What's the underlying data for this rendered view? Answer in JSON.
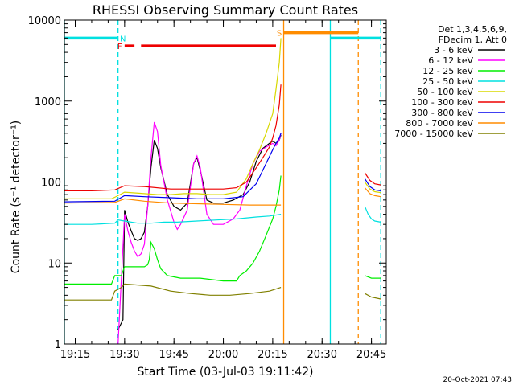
{
  "chart_data": {
    "type": "line",
    "title": "RHESSI Observing Summary Count Rates",
    "xlabel": "Start Time (03-Jul-03 19:11:42)",
    "ylabel": "Count Rate (s⁻¹ detector⁻¹)",
    "yscale": "log",
    "ylim": [
      1,
      10000
    ],
    "xlim": [
      "19:11:42",
      "20:49:30"
    ],
    "x_ticks": [
      "19:15",
      "19:30",
      "19:45",
      "20:00",
      "20:15",
      "20:30",
      "20:45"
    ],
    "y_ticks": [
      "1",
      "10",
      "100",
      "1000",
      "10000"
    ],
    "grid": false,
    "legend": {
      "placement": "right",
      "header": [
        "Det 1,3,4,5,6,9,",
        "FDecim 1, Att 0"
      ],
      "entries": [
        {
          "label": "3 - 6 keV",
          "color": "#000000"
        },
        {
          "label": "6 - 12 keV",
          "color": "#ff00ff"
        },
        {
          "label": "12 - 25 keV",
          "color": "#00ee00"
        },
        {
          "label": "25 - 50 keV",
          "color": "#00e0e0"
        },
        {
          "label": "50 - 100 keV",
          "color": "#d8d800"
        },
        {
          "label": "100 - 300 keV",
          "color": "#ee0000"
        },
        {
          "label": "300 - 800 keV",
          "color": "#0000ee"
        },
        {
          "label": "800 - 7000 keV",
          "color": "#ff8c00"
        },
        {
          "label": "7000 - 15000 keV",
          "color": "#808000"
        }
      ]
    },
    "segments": [
      {
        "x_start": "19:11:42",
        "x_end": "20:17:30"
      },
      {
        "x_start": "20:43:00",
        "x_end": "20:47:50"
      }
    ],
    "series": [
      {
        "name": "3 - 6 keV",
        "color": "#000000",
        "x": [
          "19:28:00",
          "19:29:30",
          "19:30:00",
          "19:31:00",
          "19:32:00",
          "19:33:00",
          "19:34:00",
          "19:35:00",
          "19:36:00",
          "19:37:00",
          "19:38:00",
          "19:39:00",
          "19:40:00",
          "19:41:00",
          "19:43:00",
          "19:45:00",
          "19:47:00",
          "19:49:00",
          "19:51:00",
          "19:52:00",
          "19:53:00",
          "19:55:00",
          "19:57:00",
          "20:00:00",
          "20:03:00",
          "20:06:00",
          "20:08:00",
          "20:10:00",
          "20:12:00",
          "20:14:00",
          "20:15:00",
          "20:16:00",
          "20:17:00",
          "20:17:30"
        ],
        "y": [
          1.5,
          2,
          45,
          32,
          25,
          20,
          19,
          20,
          24,
          50,
          150,
          330,
          260,
          150,
          70,
          50,
          45,
          55,
          170,
          200,
          140,
          60,
          55,
          55,
          60,
          70,
          100,
          180,
          260,
          300,
          320,
          300,
          330,
          380
        ]
      },
      {
        "name": "6 - 12 keV",
        "color": "#ff00ff",
        "x": [
          "19:28:00",
          "19:30:00",
          "19:31:00",
          "19:32:00",
          "19:33:00",
          "19:34:00",
          "19:35:00",
          "19:36:00",
          "19:37:00",
          "19:38:00",
          "19:39:00",
          "19:40:00",
          "19:41:00",
          "19:43:00",
          "19:45:00",
          "19:46:00",
          "19:47:00",
          "19:49:00",
          "19:51:00",
          "19:52:00",
          "19:53:00",
          "19:55:00",
          "19:57:00",
          "20:00:00",
          "20:03:00",
          "20:05:00",
          "20:07:00",
          "20:09:00",
          "20:11:00",
          "20:13:00",
          "20:15:00",
          "20:16:00",
          "20:17:00",
          "20:17:30"
        ],
        "y": [
          1,
          40,
          25,
          18,
          14,
          12,
          13,
          17,
          50,
          200,
          550,
          420,
          160,
          60,
          32,
          26,
          30,
          45,
          170,
          210,
          150,
          40,
          30,
          30,
          35,
          45,
          90,
          170,
          240,
          270,
          300,
          280,
          330,
          400
        ]
      },
      {
        "name": "12 - 25 keV",
        "color": "#00ee00",
        "x": [
          "19:11:42",
          "19:26:00",
          "19:27:00",
          "19:29:00",
          "19:30:00",
          "19:36:00",
          "19:37:00",
          "19:37:30",
          "19:38:00",
          "19:39:00",
          "19:40:00",
          "19:41:00",
          "19:43:00",
          "19:47:00",
          "19:49:00",
          "19:53:00",
          "20:00:00",
          "20:04:00",
          "20:05:00",
          "20:07:00",
          "20:09:00",
          "20:11:00",
          "20:13:00",
          "20:15:00",
          "20:16:00",
          "20:17:00",
          "20:17:30"
        ],
        "y": [
          5.5,
          5.5,
          7,
          7,
          9,
          9,
          9.5,
          11,
          18,
          15,
          11,
          8.5,
          7,
          6.5,
          6.5,
          6.5,
          6,
          6,
          7,
          8,
          10,
          14,
          22,
          35,
          50,
          80,
          120
        ]
      },
      {
        "name": "25 - 50 keV",
        "color": "#00e0e0",
        "x": [
          "19:11:42",
          "19:20:00",
          "19:27:00",
          "19:28:00",
          "19:30:00",
          "19:34:00",
          "19:38:00",
          "19:42:00",
          "19:46:00",
          "19:52:00",
          "19:58:00",
          "20:04:00",
          "20:10:00",
          "20:14:00",
          "20:17:30"
        ],
        "y": [
          30,
          30,
          31,
          34,
          33,
          31,
          31,
          32,
          32,
          33,
          34,
          35,
          37,
          38,
          40
        ]
      },
      {
        "name": "50 - 100 keV",
        "color": "#d8d800",
        "x": [
          "19:11:42",
          "19:26:00",
          "19:28:00",
          "19:30:00",
          "19:36:00",
          "19:40:00",
          "19:44:00",
          "19:48:00",
          "19:52:00",
          "19:56:00",
          "20:00:00",
          "20:04:00",
          "20:07:00",
          "20:09:00",
          "20:11:00",
          "20:13:00",
          "20:15:00",
          "20:16:00",
          "20:17:00",
          "20:17:30"
        ],
        "y": [
          62,
          62,
          68,
          75,
          72,
          70,
          70,
          72,
          72,
          70,
          70,
          75,
          110,
          170,
          250,
          400,
          700,
          1400,
          3000,
          6000
        ]
      },
      {
        "name": "100 - 300 keV",
        "color": "#ee0000",
        "x": [
          "19:11:42",
          "19:20:00",
          "19:27:00",
          "19:30:00",
          "19:36:00",
          "19:44:00",
          "19:50:00",
          "19:56:00",
          "20:00:00",
          "20:04:00",
          "20:07:00",
          "20:10:00",
          "20:12:00",
          "20:14:00",
          "20:15:00",
          "20:16:00",
          "20:17:00",
          "20:17:30"
        ],
        "y": [
          78,
          78,
          80,
          90,
          88,
          82,
          82,
          82,
          82,
          85,
          100,
          150,
          200,
          270,
          350,
          500,
          900,
          1600
        ]
      },
      {
        "name": "300 - 800 keV",
        "color": "#0000ee",
        "x": [
          "19:11:42",
          "19:27:00",
          "19:30:00",
          "19:36:00",
          "19:44:00",
          "19:52:00",
          "20:00:00",
          "20:06:00",
          "20:10:00",
          "20:13:00",
          "20:15:00",
          "20:16:00",
          "20:17:00",
          "20:17:30"
        ],
        "y": [
          57,
          58,
          68,
          66,
          64,
          62,
          62,
          66,
          95,
          170,
          250,
          300,
          350,
          400
        ]
      },
      {
        "name": "800 - 7000 keV",
        "color": "#ff8c00",
        "x": [
          "19:11:42",
          "19:27:00",
          "19:30:00",
          "19:36:00",
          "19:44:00",
          "19:52:00",
          "20:00:00",
          "20:08:00",
          "20:14:00",
          "20:17:30"
        ],
        "y": [
          55,
          56,
          62,
          58,
          55,
          54,
          53,
          52,
          52,
          52
        ]
      },
      {
        "name": "7000 - 15000 keV",
        "color": "#808000",
        "x": [
          "19:11:42",
          "19:26:00",
          "19:27:00",
          "19:29:00",
          "19:30:00",
          "19:38:00",
          "19:44:00",
          "19:50:00",
          "19:56:00",
          "20:02:00",
          "20:08:00",
          "20:14:00",
          "20:17:30"
        ],
        "y": [
          3.5,
          3.5,
          4.5,
          5,
          5.5,
          5.2,
          4.5,
          4.2,
          4,
          4,
          4.2,
          4.5,
          5
        ]
      }
    ],
    "post_gap_series": [
      {
        "name": "100 - 300 keV",
        "color": "#ee0000",
        "x": [
          "20:43:00",
          "20:44:30",
          "20:46:00",
          "20:47:50"
        ],
        "y": [
          130,
          105,
          95,
          92
        ]
      },
      {
        "name": "300 - 800 keV",
        "color": "#0000ee",
        "x": [
          "20:43:00",
          "20:44:30",
          "20:46:00",
          "20:47:50"
        ],
        "y": [
          110,
          88,
          80,
          78
        ]
      },
      {
        "name": "50 - 100 keV",
        "color": "#d8d800",
        "x": [
          "20:43:00",
          "20:44:30",
          "20:46:00",
          "20:47:50"
        ],
        "y": [
          100,
          82,
          76,
          74
        ]
      },
      {
        "name": "800 - 7000 keV",
        "color": "#ff8c00",
        "x": [
          "20:43:00",
          "20:44:30",
          "20:46:00",
          "20:47:50"
        ],
        "y": [
          85,
          72,
          68,
          66
        ]
      },
      {
        "name": "25 - 50 keV",
        "color": "#00e0e0",
        "x": [
          "20:43:00",
          "20:44:00",
          "20:45:00",
          "20:46:00",
          "20:47:50"
        ],
        "y": [
          50,
          40,
          35,
          33,
          32
        ]
      },
      {
        "name": "12 - 25 keV",
        "color": "#00ee00",
        "x": [
          "20:43:00",
          "20:45:00",
          "20:47:50"
        ],
        "y": [
          7,
          6.5,
          6.5
        ]
      },
      {
        "name": "7000 - 15000 keV",
        "color": "#808000",
        "x": [
          "20:43:00",
          "20:45:00",
          "20:47:50"
        ],
        "y": [
          4.2,
          3.8,
          3.6
        ]
      }
    ],
    "status_bars": [
      {
        "label": "N",
        "color": "#00e0e0",
        "y": 6000,
        "spans": [
          [
            "19:11:42",
            "19:28:00"
          ],
          [
            "20:32:30",
            "20:47:50"
          ]
        ],
        "label_at": "19:29:30"
      },
      {
        "label": "F",
        "color": "#ee0000",
        "y": 4800,
        "spans": [
          [
            "19:30:00",
            "19:33:00"
          ],
          [
            "19:35:00",
            "20:16:00"
          ]
        ],
        "label_at": "19:28:30"
      },
      {
        "label": "S",
        "color": "#ff8c00",
        "y": 7000,
        "spans": [
          [
            "20:18:20",
            "20:41:00"
          ]
        ],
        "label_at": "20:17:00"
      }
    ],
    "vertical_markers": [
      {
        "x": "19:11:42",
        "color": "#00e0e0",
        "style": "solid"
      },
      {
        "x": "19:28:00",
        "color": "#00e0e0",
        "style": "dashed"
      },
      {
        "x": "20:18:20",
        "color": "#ff8c00",
        "style": "solid"
      },
      {
        "x": "20:32:30",
        "color": "#00e0e0",
        "style": "solid"
      },
      {
        "x": "20:41:00",
        "color": "#ff8c00",
        "style": "dashed"
      },
      {
        "x": "20:47:50",
        "color": "#00e0e0",
        "style": "dashed"
      }
    ],
    "timestamp": "20-Oct-2021 07:43"
  }
}
